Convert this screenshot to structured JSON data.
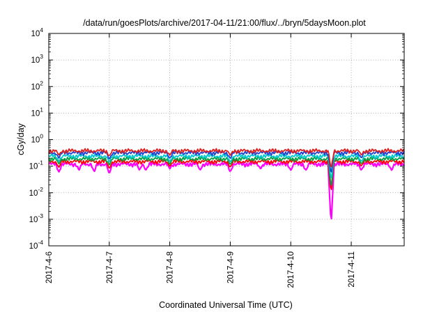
{
  "chart_data": {
    "type": "line",
    "title": "/data/run/goesPlots/archive/2017-04-11/21:00/flux/../bryn/5daysMoon.plot",
    "xlabel": "Coordinated Universal Time (UTC)",
    "ylabel": "cGy/day",
    "yscale": "log",
    "ylim": [
      0.0001,
      10000
    ],
    "y_ticks": [
      {
        "base": "10",
        "exp": "-4",
        "value": 0.0001
      },
      {
        "base": "10",
        "exp": "-3",
        "value": 0.001
      },
      {
        "base": "10",
        "exp": "-2",
        "value": 0.01
      },
      {
        "base": "10",
        "exp": "-1",
        "value": 0.1
      },
      {
        "base": "10",
        "exp": "0",
        "value": 1
      },
      {
        "base": "10",
        "exp": "1",
        "value": 10
      },
      {
        "base": "10",
        "exp": "2",
        "value": 100
      },
      {
        "base": "10",
        "exp": "3",
        "value": 1000
      },
      {
        "base": "10",
        "exp": "4",
        "value": 10000
      }
    ],
    "x_ticks": [
      "2017-4-6",
      "2017-4-7",
      "2017-4-8",
      "2017-4-9",
      "2017-4-10",
      "2017-4-11"
    ],
    "xlim": [
      "2017-04-06 00:00",
      "2017-04-11 21:00"
    ],
    "grid": true,
    "legend": "none",
    "series": [
      {
        "color": "#ff00ff",
        "baseline": 0.12,
        "dips": [
          [
            "2017-04-06 04:00",
            0.06
          ],
          [
            "2017-04-06 12:00",
            0.07
          ],
          [
            "2017-04-06 18:00",
            0.06
          ],
          [
            "2017-04-07 00:00",
            0.05
          ],
          [
            "2017-04-07 12:00",
            0.07
          ],
          [
            "2017-04-07 14:30",
            0.07
          ],
          [
            "2017-04-08 00:00",
            0.08
          ],
          [
            "2017-04-08 12:00",
            0.07
          ],
          [
            "2017-04-09 00:00",
            0.06
          ],
          [
            "2017-04-09 12:00",
            0.08
          ],
          [
            "2017-04-10 00:00",
            0.07
          ],
          [
            "2017-04-10 06:00",
            0.07
          ],
          [
            "2017-04-10 16:00",
            0.0006
          ],
          [
            "2017-04-11 04:00",
            0.07
          ],
          [
            "2017-04-11 16:00",
            0.07
          ]
        ]
      },
      {
        "color": "#ff0000",
        "baseline": 0.15,
        "dips": [
          [
            "2017-04-06 04:00",
            0.09
          ],
          [
            "2017-04-07 00:00",
            0.08
          ],
          [
            "2017-04-08 00:00",
            0.1
          ],
          [
            "2017-04-09 00:00",
            0.09
          ],
          [
            "2017-04-10 16:00",
            0.01
          ],
          [
            "2017-04-11 04:00",
            0.1
          ]
        ]
      },
      {
        "color": "#00a040",
        "baseline": 0.19,
        "dips": [
          [
            "2017-04-06 04:00",
            0.12
          ],
          [
            "2017-04-07 00:00",
            0.11
          ],
          [
            "2017-04-08 00:00",
            0.12
          ],
          [
            "2017-04-09 00:00",
            0.11
          ],
          [
            "2017-04-10 16:00",
            0.015
          ],
          [
            "2017-04-11 04:00",
            0.12
          ]
        ]
      },
      {
        "color": "#00c8d2",
        "baseline": 0.24,
        "dips": [
          [
            "2017-04-06 04:00",
            0.15
          ],
          [
            "2017-04-07 00:00",
            0.14
          ],
          [
            "2017-04-08 00:00",
            0.15
          ],
          [
            "2017-04-09 00:00",
            0.14
          ],
          [
            "2017-04-10 16:00",
            0.03
          ],
          [
            "2017-04-11 04:00",
            0.15
          ]
        ]
      },
      {
        "color": "#2040d0",
        "baseline": 0.32,
        "dips": [
          [
            "2017-04-06 04:00",
            0.2
          ],
          [
            "2017-04-07 00:00",
            0.18
          ],
          [
            "2017-04-08 00:00",
            0.2
          ],
          [
            "2017-04-09 00:00",
            0.19
          ],
          [
            "2017-04-10 16:00",
            0.05
          ],
          [
            "2017-04-11 04:00",
            0.2
          ]
        ]
      },
      {
        "color": "#e02020",
        "baseline": 0.38,
        "dips": [
          [
            "2017-04-06 04:00",
            0.26
          ],
          [
            "2017-04-07 00:00",
            0.24
          ],
          [
            "2017-04-08 00:00",
            0.26
          ],
          [
            "2017-04-09 00:00",
            0.25
          ],
          [
            "2017-04-10 16:00",
            0.08
          ],
          [
            "2017-04-11 04:00",
            0.26
          ]
        ]
      }
    ]
  }
}
